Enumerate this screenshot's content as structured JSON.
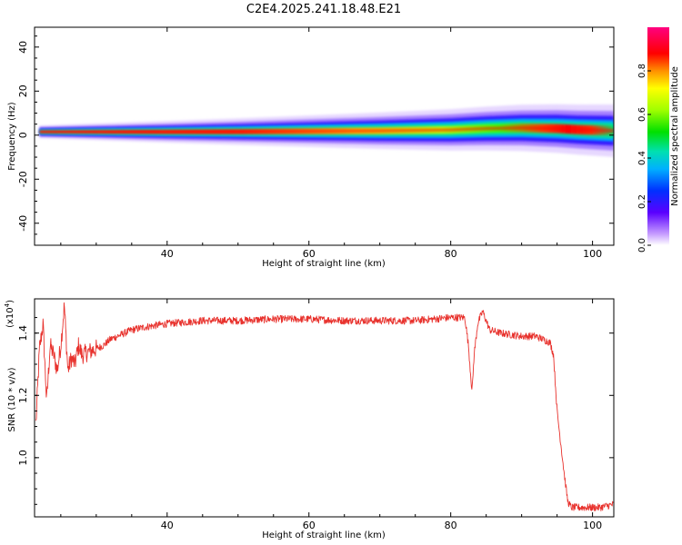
{
  "title": "C2E4.2025.241.18.48.E21",
  "chart_data": [
    {
      "type": "heatmap",
      "xlabel": "Height of straight line (km)",
      "ylabel": "Frequency (Hz)",
      "xlim": [
        21.3,
        103.0
      ],
      "ylim": [
        -50,
        49
      ],
      "xticks": [
        40,
        60,
        80,
        100
      ],
      "yticks": [
        40,
        20,
        0,
        -20,
        -40
      ],
      "ridge": [
        {
          "x": 22,
          "f": 1.5
        },
        {
          "x": 30,
          "f": 1.5
        },
        {
          "x": 40,
          "f": 1.5
        },
        {
          "x": 50,
          "f": 1.6
        },
        {
          "x": 60,
          "f": 1.8
        },
        {
          "x": 70,
          "f": 2.0
        },
        {
          "x": 80,
          "f": 2.4
        },
        {
          "x": 85,
          "f": 3.0
        },
        {
          "x": 90,
          "f": 3.3
        },
        {
          "x": 95,
          "f": 3.0
        },
        {
          "x": 98,
          "f": 2.5
        },
        {
          "x": 103,
          "f": 2.0
        }
      ],
      "colorbar": {
        "label": "Normalized spectral amplitude",
        "range": [
          0,
          1
        ],
        "ticks": [
          "0.0",
          "0.2",
          "0.4",
          "0.6",
          "0.8"
        ]
      }
    },
    {
      "type": "line",
      "xlabel": "Height of straight line (km)",
      "ylabel": "SNR (10 * v/v)",
      "y_multiplier": "(x10",
      "y_multiplier_exp": "4",
      "y_multiplier_close": ")",
      "xlim": [
        21.3,
        103.0
      ],
      "ylim": [
        0.81,
        1.51
      ],
      "xticks": [
        40,
        60,
        80,
        100
      ],
      "yticks": [
        "1.4",
        "1.2",
        "1.0"
      ],
      "ytick_values": [
        1.4,
        1.2,
        1.0
      ],
      "color": "#e8322d",
      "x": [
        21.5,
        22.0,
        22.5,
        23.0,
        23.5,
        24.0,
        24.5,
        25.0,
        25.5,
        26.0,
        26.5,
        27.0,
        27.5,
        28.0,
        29.0,
        30.0,
        31.0,
        32.0,
        33.0,
        34.0,
        35.0,
        37.0,
        40.0,
        45.0,
        50.0,
        55.0,
        60.0,
        65.0,
        70.0,
        75.0,
        80.0,
        82.0,
        82.5,
        83.0,
        83.3,
        83.8,
        84.5,
        85.5,
        87.0,
        90.0,
        92.0,
        94.0,
        94.5,
        95.0,
        96.0,
        96.5,
        97.0,
        99.0,
        101.0,
        103.0
      ],
      "y": [
        1.11,
        1.35,
        1.43,
        1.18,
        1.36,
        1.33,
        1.28,
        1.36,
        1.49,
        1.28,
        1.32,
        1.3,
        1.36,
        1.33,
        1.34,
        1.35,
        1.36,
        1.38,
        1.39,
        1.4,
        1.41,
        1.42,
        1.43,
        1.44,
        1.44,
        1.445,
        1.445,
        1.44,
        1.44,
        1.44,
        1.45,
        1.45,
        1.36,
        1.21,
        1.33,
        1.43,
        1.47,
        1.41,
        1.4,
        1.39,
        1.39,
        1.37,
        1.33,
        1.15,
        0.95,
        0.86,
        0.84,
        0.84,
        0.84,
        0.85
      ]
    }
  ]
}
